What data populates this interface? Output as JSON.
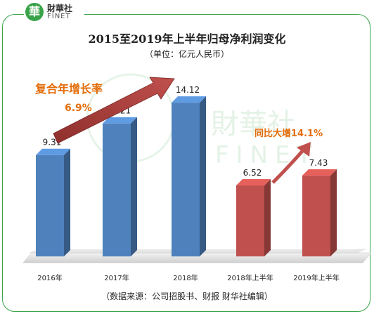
{
  "logo": {
    "mark": "華",
    "cn": "財華社",
    "en": "FINET"
  },
  "watermark": {
    "cn": "財華社",
    "en": "FINET"
  },
  "chart_data": {
    "type": "bar",
    "title": "2015至2019年上半年归母净利润变化",
    "subtitle": "（单位：亿元人民币）",
    "categories": [
      "2016年",
      "2017年",
      "2018年",
      "2018年上半年",
      "2019年上半年"
    ],
    "values": [
      9.31,
      12.21,
      14.12,
      6.52,
      7.43
    ],
    "value_labels": [
      "9.31",
      "12.21",
      "14.12",
      "6.52",
      "7.43"
    ],
    "bar_colors": [
      "#4f81bd",
      "#4f81bd",
      "#4f81bd",
      "#c0504d",
      "#c0504d"
    ],
    "grid": false,
    "annotations": {
      "cagr_label": "复合年增长率",
      "cagr_value": "6.9%",
      "yoy_label": "同比大增",
      "yoy_value": "14.1%"
    },
    "source": "（数据来源：公司招股书、财报    财华社编辑）"
  },
  "colors": {
    "accent_text": "#e36c09",
    "arrow": "#c0504d",
    "frame": "#3aa34a",
    "blue": "#4f81bd",
    "red": "#c0504d"
  }
}
